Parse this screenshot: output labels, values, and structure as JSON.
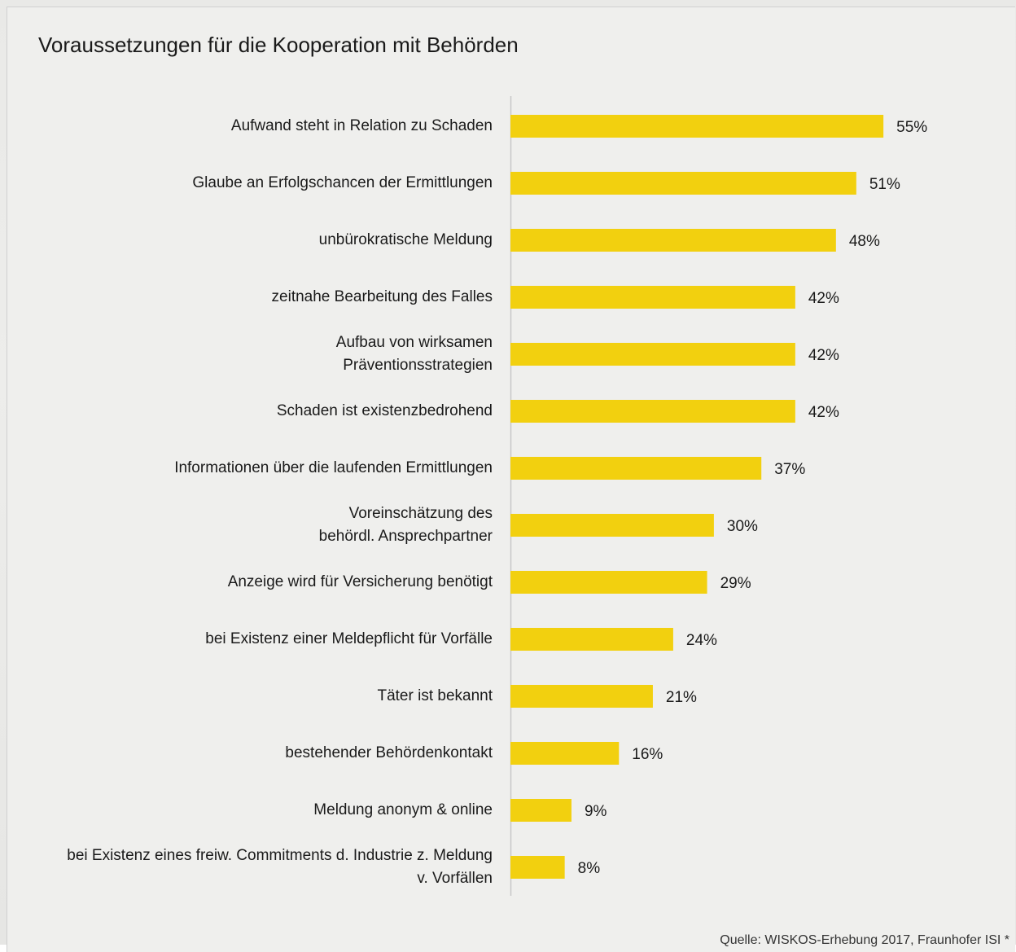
{
  "chart_data": {
    "type": "bar",
    "orientation": "horizontal",
    "title": "Voraussetzungen für die Kooperation mit Behörden",
    "categories": [
      "Aufwand steht in Relation zu Schaden",
      "Glaube an Erfolgschancen der Ermittlungen",
      "unbürokratische Meldung",
      "zeitnahe Bearbeitung des Falles",
      "Aufbau von wirksamen\nPräventionsstrategien",
      "Schaden ist existenzbedrohend",
      "Informationen über die laufenden Ermittlungen",
      "Voreinschätzung des\nbehördl. Ansprechpartner",
      "Anzeige wird für Versicherung benötigt",
      "bei Existenz einer Meldepflicht für Vorfälle",
      "Täter ist bekannt",
      "bestehender Behördenkontakt",
      "Meldung anonym & online",
      "bei Existenz eines freiw. Commitments d. Industrie z. Meldung\nv. Vorfällen"
    ],
    "values": [
      55,
      51,
      48,
      42,
      42,
      42,
      37,
      30,
      29,
      24,
      21,
      16,
      9,
      8
    ],
    "value_labels": [
      "55%",
      "51%",
      "48%",
      "42%",
      "42%",
      "42%",
      "37%",
      "30%",
      "29%",
      "24%",
      "21%",
      "16%",
      "9%",
      "8%"
    ],
    "color": "#f2d00f",
    "source": "Quelle: WISKOS-Erhebung 2017, Fraunhofer ISI *"
  }
}
